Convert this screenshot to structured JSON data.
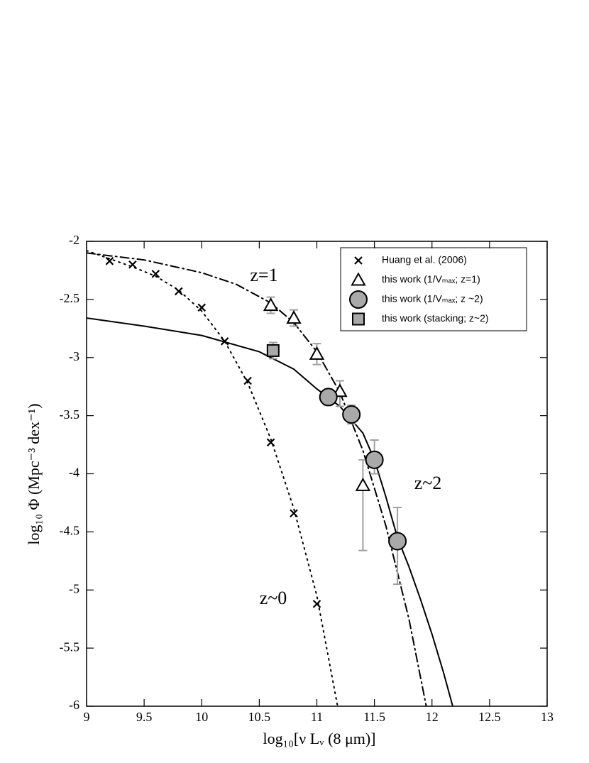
{
  "chart_data": {
    "type": "scatter",
    "xlabel": "log₁₀[ν Lᵥ (8 μm)]",
    "ylabel": "log₁₀ Φ  (Mpc⁻³ dex⁻¹)",
    "xlim": [
      9,
      13
    ],
    "ylim": [
      -6,
      -2
    ],
    "xticks": [
      9,
      9.5,
      10,
      10.5,
      11,
      11.5,
      12,
      12.5,
      13
    ],
    "yticks": [
      -6,
      -5.5,
      -5,
      -4.5,
      -4,
      -3.5,
      -3,
      -2.5,
      -2
    ],
    "legend": "upper right",
    "series": [
      {
        "name": "Huang et al. (2006)",
        "marker": "cross",
        "color": "#000000",
        "x": [
          9.2,
          9.4,
          9.6,
          9.8,
          10.0,
          10.2,
          10.4,
          10.6,
          10.8,
          11.0
        ],
        "values": [
          -2.17,
          -2.2,
          -2.28,
          -2.43,
          -2.57,
          -2.86,
          -3.2,
          -3.73,
          -4.34,
          -5.12
        ]
      },
      {
        "name": "this work (1/Vₘₐₓ;  z=1)",
        "marker": "triangle",
        "color": "#ffffff",
        "x": [
          10.6,
          10.8,
          11.0,
          11.2,
          11.4
        ],
        "values": [
          -2.55,
          -2.66,
          -2.97,
          -3.29,
          -4.1
        ],
        "yerr_low": [
          0.07,
          0.07,
          0.09,
          0.13,
          0.56
        ],
        "yerr_high": [
          0.07,
          0.07,
          0.09,
          0.09,
          0.22
        ]
      },
      {
        "name": "this work  (1/Vₘₐₓ; z ~2)",
        "marker": "circle",
        "color": "#a9a9a9",
        "x": [
          11.1,
          11.3,
          11.5,
          11.7
        ],
        "values": [
          -3.34,
          -3.49,
          -3.88,
          -4.58
        ],
        "yerr_low": [
          0.07,
          0.08,
          0.12,
          0.37
        ],
        "yerr_high": [
          0.07,
          0.08,
          0.17,
          0.29
        ]
      },
      {
        "name": "this work (stacking; z~2)",
        "marker": "square",
        "color": "#a9a9a9",
        "x": [
          10.62
        ],
        "values": [
          -2.94
        ],
        "yerr_low": [
          0.07
        ],
        "yerr_high": [
          0.07
        ]
      }
    ],
    "errorbar_color": "#a0a0a0",
    "curves": [
      {
        "dash": "dot",
        "x": [
          9,
          9.2,
          9.4,
          9.6,
          9.8,
          10,
          10.2,
          10.4,
          10.6,
          10.8,
          11,
          11.18
        ],
        "values": [
          -2.08,
          -2.15,
          -2.22,
          -2.3,
          -2.42,
          -2.6,
          -2.86,
          -3.22,
          -3.7,
          -4.3,
          -5.05,
          -6
        ]
      },
      {
        "dash": "dashdot",
        "x": [
          9,
          9.5,
          10,
          10.3,
          10.6,
          10.8,
          11,
          11.2,
          11.4,
          11.6,
          11.8,
          11.95
        ],
        "values": [
          -2.1,
          -2.16,
          -2.27,
          -2.37,
          -2.53,
          -2.7,
          -2.95,
          -3.3,
          -3.8,
          -4.45,
          -5.25,
          -6
        ]
      },
      {
        "dash": "solid",
        "x": [
          9,
          9.5,
          10,
          10.5,
          10.8,
          11,
          11.2,
          11.4,
          11.5,
          11.6,
          11.7,
          11.8,
          11.9,
          12,
          12.1,
          12.18
        ],
        "values": [
          -2.66,
          -2.73,
          -2.81,
          -2.95,
          -3.1,
          -3.27,
          -3.42,
          -3.65,
          -3.88,
          -4.2,
          -4.55,
          -4.8,
          -5.08,
          -5.38,
          -5.71,
          -6
        ]
      }
    ],
    "annotations": [
      "z=1",
      "z~2",
      "z~0"
    ]
  }
}
